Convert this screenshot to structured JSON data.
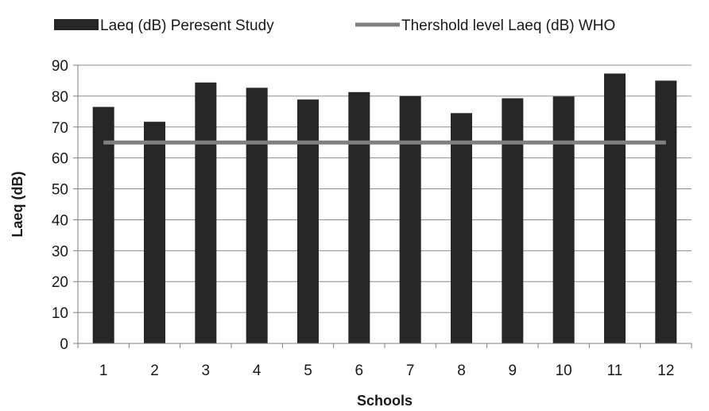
{
  "chart_data": {
    "type": "bar",
    "title": "",
    "xlabel": "Schools",
    "ylabel": "Laeq (dB)",
    "categories": [
      "1",
      "2",
      "3",
      "4",
      "5",
      "6",
      "7",
      "8",
      "9",
      "10",
      "11",
      "12"
    ],
    "series": [
      {
        "name": "Laeq (dB) Peresent Study",
        "type": "bar",
        "color": "#262626",
        "values": [
          76.5,
          71.7,
          84.4,
          82.7,
          78.9,
          81.3,
          80.0,
          74.5,
          79.3,
          79.9,
          87.3,
          85.0
        ]
      },
      {
        "name": "Thershold level Laeq (dB) WHO",
        "type": "line",
        "color": "#808080",
        "values": [
          65,
          65,
          65,
          65,
          65,
          65,
          65,
          65,
          65,
          65,
          65,
          65
        ]
      }
    ],
    "ylim": [
      0,
      90
    ],
    "yticks": [
      0,
      10,
      20,
      30,
      40,
      50,
      60,
      70,
      80,
      90
    ],
    "grid": true,
    "legend": "top"
  }
}
